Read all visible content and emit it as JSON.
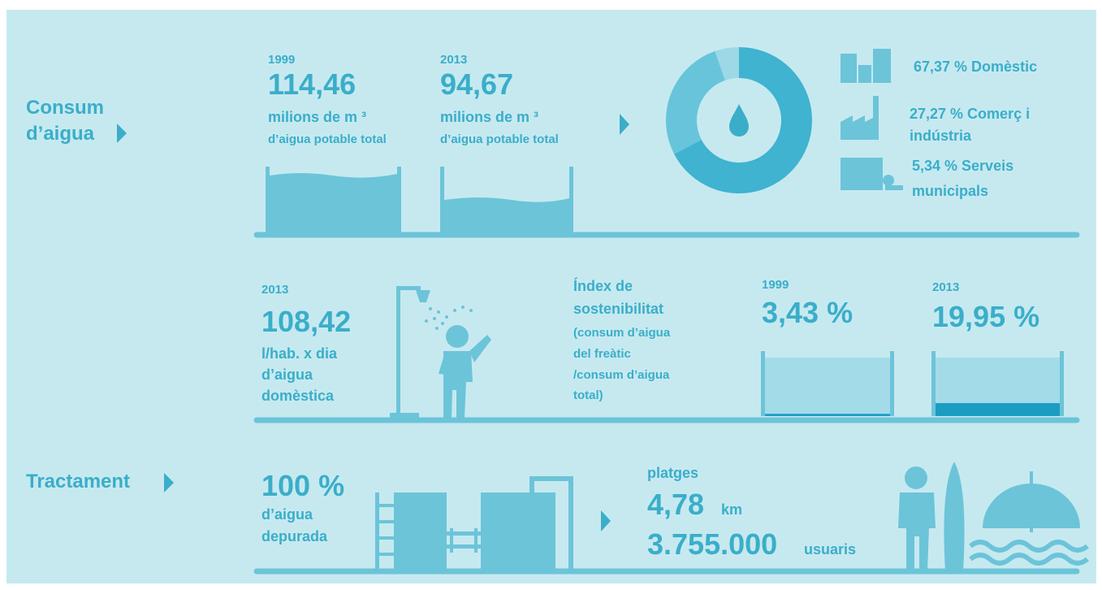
{
  "consum": {
    "title_line1": "Consum",
    "title_line2": "d’aigua",
    "total": [
      {
        "year": "1999",
        "value": "114,46",
        "unit": "milions de m ³",
        "caption": "d’aigua potable total"
      },
      {
        "year": "2013",
        "value": "94,67",
        "unit": "milions de m ³",
        "caption": "d’aigua potable total"
      }
    ],
    "sectors": [
      {
        "value": 67.37,
        "label_line1": "67,37 % Domèstic",
        "color": "#3fb3cf"
      },
      {
        "value": 27.27,
        "label_line1": "27,27 % Comerç i",
        "label_line2": "indústria",
        "color": "#68c4da"
      },
      {
        "value": 5.34,
        "label_line1": "5,34 % Serveis",
        "label_line2": "municipals",
        "color": "#9dd8e6"
      }
    ]
  },
  "domestic": {
    "year": "2013",
    "value": "108,42",
    "lines": [
      "l/hab. x dia",
      "d’aigua",
      "domèstica"
    ]
  },
  "index": {
    "lines": [
      "Índex de",
      "sostenibilitat",
      "(consum d’aigua",
      "del freàtic",
      "/consum d’aigua",
      "total)"
    ],
    "years": [
      {
        "year": "1999",
        "value": 3.43,
        "value_label": "3,43 %"
      },
      {
        "year": "2013",
        "value": 19.95,
        "value_label": "19,95 %"
      }
    ]
  },
  "tractament": {
    "title": "Tractament",
    "value": "100 %",
    "lines": [
      "d’aigua",
      "depurada"
    ]
  },
  "platges": {
    "label": "platges",
    "length": "4,78",
    "length_unit": "km",
    "users": "3.755.000",
    "users_unit": "usuaris"
  }
}
